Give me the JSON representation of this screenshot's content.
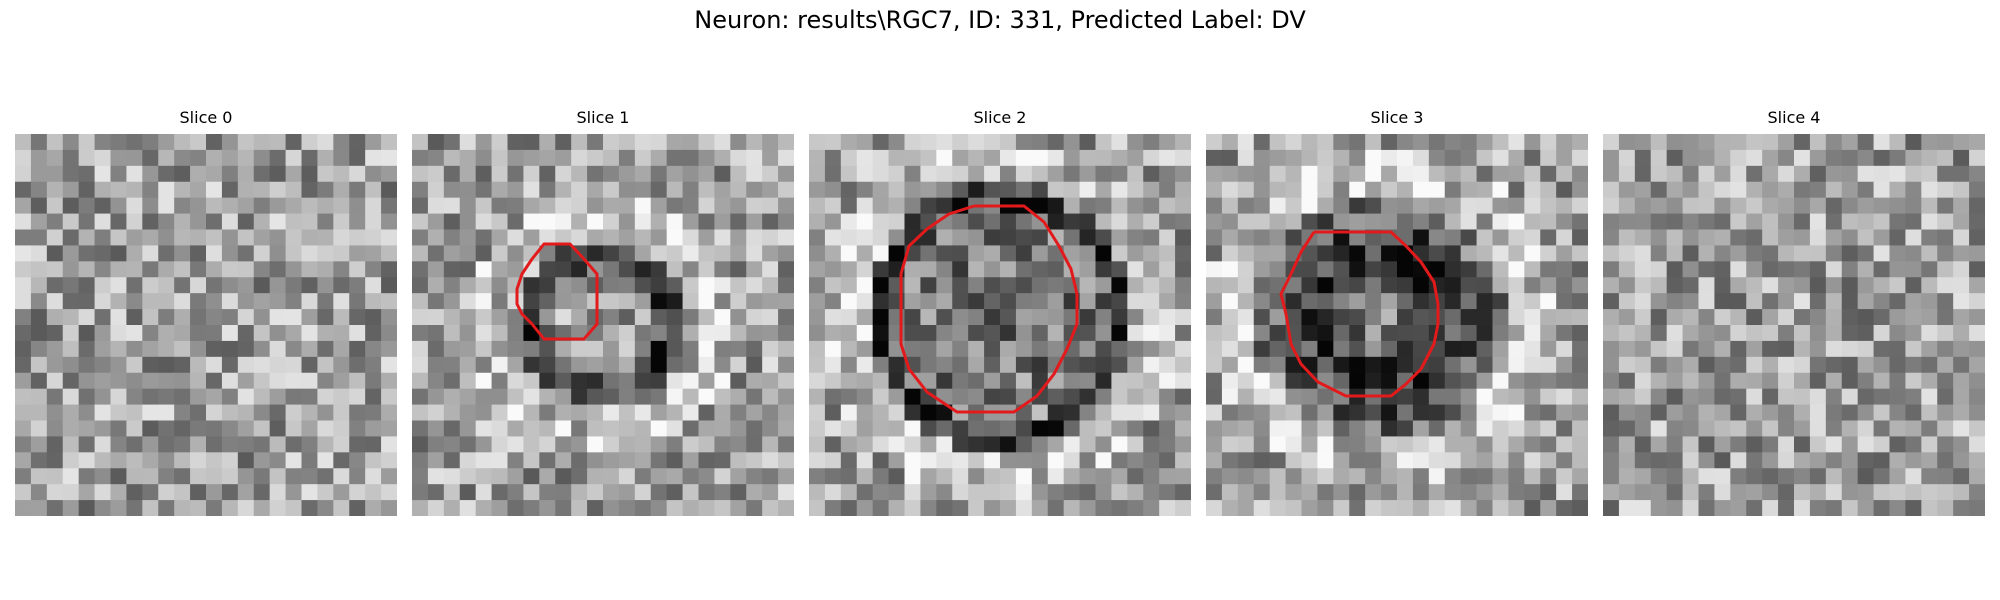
{
  "figure": {
    "suptitle": "Neuron: results\\RGC7, ID: 331, Predicted Label: DV"
  },
  "colors": {
    "contour": "#e31a1c",
    "background": "#ffffff"
  },
  "slices": [
    {
      "title": "Slice 0",
      "has_contour": false
    },
    {
      "title": "Slice 1",
      "has_contour": true
    },
    {
      "title": "Slice 2",
      "has_contour": true
    },
    {
      "title": "Slice 3",
      "has_contour": true
    },
    {
      "title": "Slice 4",
      "has_contour": false
    }
  ]
}
